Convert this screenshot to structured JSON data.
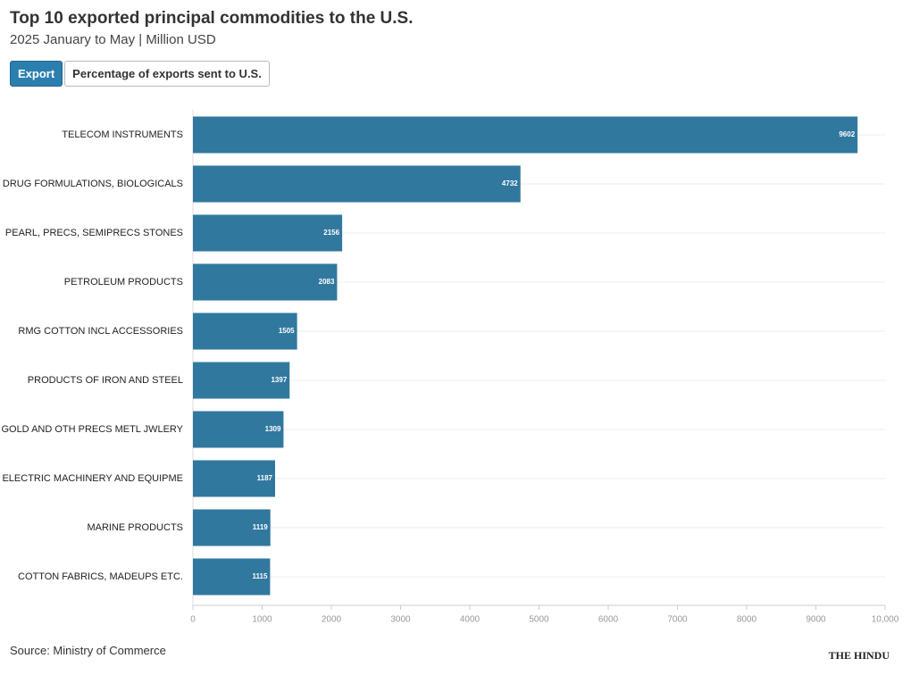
{
  "chart_data": {
    "type": "barh",
    "title": "Top 10 exported principal commodities to the U.S.",
    "subtitle": "2025 January to May | Million USD",
    "categories": [
      "TELECOM INSTRUMENTS",
      "DRUG FORMULATIONS, BIOLOGICALS",
      "PEARL, PRECS, SEMIPRECS STONES",
      "PETROLEUM PRODUCTS",
      "RMG COTTON INCL ACCESSORIES",
      "PRODUCTS OF IRON AND STEEL",
      "GOLD AND OTH PRECS METL JWLERY",
      "ELECTRIC MACHINERY AND EQUIPME",
      "MARINE PRODUCTS",
      "COTTON FABRICS, MADEUPS ETC."
    ],
    "values": [
      9602,
      4732,
      2156,
      2083,
      1505,
      1397,
      1309,
      1187,
      1119,
      1115
    ],
    "color": "#31789f",
    "xlim": [
      0,
      10000
    ],
    "xticks": [
      0,
      1000,
      2000,
      3000,
      4000,
      5000,
      6000,
      7000,
      8000,
      9000,
      {
        "value": 10000,
        "label": "10,000"
      }
    ],
    "source": "Source: Ministry of Commerce",
    "logo": "THE HINDU"
  },
  "buttons": [
    "Export",
    "Percentage of exports sent to U.S."
  ]
}
